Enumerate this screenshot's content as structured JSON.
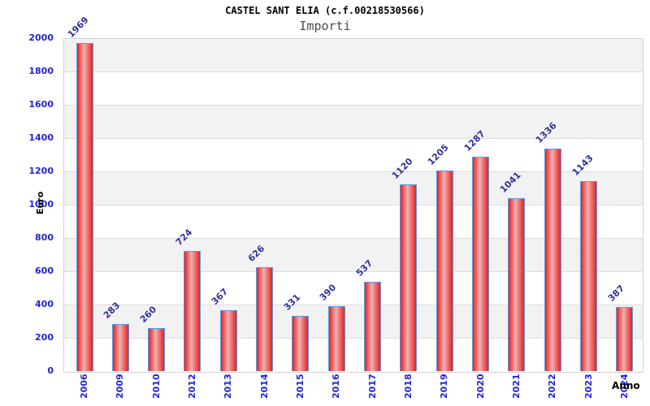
{
  "header": {
    "title": "CASTEL SANT ELIA (c.f.00218530566)",
    "subtitle": "Importi"
  },
  "chart_data": {
    "type": "bar",
    "title": "CASTEL SANT ELIA (c.f.00218530566)",
    "subtitle": "Importi",
    "xlabel": "Anno",
    "ylabel": "Euro",
    "categories": [
      "2006",
      "2009",
      "2010",
      "2012",
      "2013",
      "2014",
      "2015",
      "2016",
      "2017",
      "2018",
      "2019",
      "2020",
      "2021",
      "2022",
      "2023",
      "2024"
    ],
    "values": [
      1969,
      283,
      260,
      724,
      367,
      626,
      331,
      390,
      537,
      1120,
      1205,
      1287,
      1041,
      1336,
      1143,
      387
    ],
    "ylim": [
      0,
      2000
    ],
    "ytick_step": 200,
    "yticks": [
      0,
      200,
      400,
      600,
      800,
      1000,
      1200,
      1400,
      1600,
      1800,
      2000
    ],
    "grid": "horizontal-alternating-bands",
    "legend": "none",
    "colors": {
      "bar_fill_outer": "#e42222",
      "bar_fill_center": "#f2b0b0",
      "bar_edge": "#5c9ce6",
      "value_label": "#32329b",
      "tick_label": "#2323d7",
      "band_gray": "#f2f2f2",
      "band_white": "#ffffff",
      "grid_line": "#dcdcdc",
      "title": "#000000",
      "subtitle": "#4a4a4a",
      "axis_title": "#1a1a1a"
    }
  }
}
